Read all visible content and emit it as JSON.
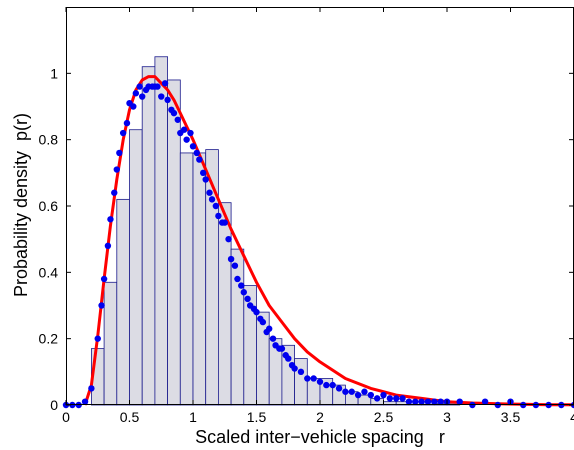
{
  "chart_data": {
    "type": "bar",
    "xlabel": "Scaled inter−vehicle spacing   r",
    "ylabel": "Probability density  p(r)",
    "xlim": [
      0,
      4
    ],
    "ylim": [
      0,
      1.2
    ],
    "xticks": [
      "0",
      "0.5",
      "1",
      "1.5",
      "2",
      "2.5",
      "3",
      "3.5",
      "4"
    ],
    "yticks": [
      "0",
      "0.2",
      "0.4",
      "0.6",
      "0.8",
      "1"
    ],
    "grid": false,
    "histogram": {
      "bin_width": 0.1,
      "bin_starts": [
        0.0,
        0.1,
        0.2,
        0.3,
        0.4,
        0.5,
        0.6,
        0.7,
        0.8,
        0.9,
        1.0,
        1.1,
        1.2,
        1.3,
        1.4,
        1.5,
        1.6,
        1.7,
        1.8,
        1.9,
        2.0,
        2.1,
        2.2,
        2.3,
        2.4,
        2.5,
        2.6,
        2.7,
        2.8,
        2.9,
        3.0,
        3.1,
        3.2,
        3.3,
        3.4,
        3.5,
        3.6,
        3.7,
        3.8,
        3.9
      ],
      "values": [
        0.0,
        0.0,
        0.17,
        0.37,
        0.62,
        0.83,
        1.02,
        1.05,
        0.98,
        0.76,
        0.76,
        0.77,
        0.61,
        0.47,
        0.36,
        0.28,
        0.2,
        0.18,
        0.14,
        0.08,
        0.08,
        0.06,
        0.04,
        0.03,
        0.02,
        0.01,
        0.01,
        0.01,
        0.01,
        0.005,
        0.005,
        0.0,
        0.0,
        0.0,
        0.0,
        0.0,
        0.0,
        0.0,
        0.0,
        0.0
      ],
      "fill": "#dcdce4",
      "stroke": "#1a1a8c"
    },
    "series": [
      {
        "type": "scatter",
        "color": "#0000ee",
        "x": [
          0.0,
          0.05,
          0.1,
          0.15,
          0.2,
          0.25,
          0.28,
          0.3,
          0.33,
          0.35,
          0.38,
          0.4,
          0.42,
          0.45,
          0.48,
          0.5,
          0.53,
          0.55,
          0.58,
          0.6,
          0.63,
          0.65,
          0.68,
          0.7,
          0.72,
          0.75,
          0.78,
          0.8,
          0.83,
          0.85,
          0.88,
          0.9,
          0.93,
          0.95,
          0.98,
          1.0,
          1.03,
          1.05,
          1.08,
          1.1,
          1.13,
          1.15,
          1.18,
          1.2,
          1.23,
          1.25,
          1.28,
          1.3,
          1.33,
          1.35,
          1.38,
          1.4,
          1.43,
          1.45,
          1.48,
          1.5,
          1.53,
          1.55,
          1.58,
          1.6,
          1.63,
          1.65,
          1.68,
          1.7,
          1.73,
          1.75,
          1.78,
          1.8,
          1.85,
          1.9,
          1.95,
          2.0,
          2.05,
          2.1,
          2.15,
          2.2,
          2.25,
          2.3,
          2.35,
          2.4,
          2.45,
          2.5,
          2.55,
          2.6,
          2.65,
          2.7,
          2.75,
          2.8,
          2.85,
          2.9,
          2.95,
          3.0,
          3.1,
          3.2,
          3.3,
          3.4,
          3.5,
          3.6,
          3.7,
          3.8,
          3.9,
          4.0
        ],
        "y": [
          0.0,
          0.0,
          0.0,
          0.01,
          0.05,
          0.2,
          0.3,
          0.38,
          0.48,
          0.56,
          0.64,
          0.71,
          0.76,
          0.82,
          0.85,
          0.91,
          0.9,
          0.94,
          0.96,
          0.93,
          0.95,
          0.96,
          0.96,
          0.96,
          0.96,
          0.93,
          0.97,
          0.92,
          0.89,
          0.88,
          0.86,
          0.82,
          0.83,
          0.8,
          0.82,
          0.78,
          0.76,
          0.74,
          0.7,
          0.68,
          0.64,
          0.62,
          0.6,
          0.57,
          0.55,
          0.55,
          0.5,
          0.44,
          0.42,
          0.38,
          0.36,
          0.34,
          0.32,
          0.3,
          0.29,
          0.28,
          0.26,
          0.25,
          0.22,
          0.23,
          0.2,
          0.18,
          0.17,
          0.17,
          0.15,
          0.14,
          0.12,
          0.11,
          0.1,
          0.08,
          0.08,
          0.07,
          0.06,
          0.06,
          0.05,
          0.04,
          0.04,
          0.03,
          0.04,
          0.03,
          0.02,
          0.03,
          0.02,
          0.02,
          0.02,
          0.01,
          0.01,
          0.01,
          0.01,
          0.01,
          0.01,
          0.01,
          0.01,
          0.0,
          0.01,
          0.0,
          0.01,
          0.0,
          0.0,
          0.0,
          0.0,
          0.0
        ]
      },
      {
        "type": "line",
        "color": "#ff0000",
        "x": [
          0.15,
          0.2,
          0.25,
          0.3,
          0.35,
          0.4,
          0.45,
          0.5,
          0.55,
          0.6,
          0.65,
          0.7,
          0.75,
          0.8,
          0.85,
          0.9,
          0.95,
          1.0,
          1.1,
          1.2,
          1.3,
          1.4,
          1.5,
          1.6,
          1.7,
          1.8,
          1.9,
          2.0,
          2.2,
          2.4,
          2.6,
          2.8,
          3.0,
          3.2,
          3.4,
          3.6,
          3.8,
          4.0
        ],
        "y": [
          0.0,
          0.06,
          0.21,
          0.38,
          0.54,
          0.68,
          0.8,
          0.89,
          0.95,
          0.98,
          0.99,
          0.99,
          0.97,
          0.95,
          0.92,
          0.88,
          0.84,
          0.8,
          0.71,
          0.62,
          0.53,
          0.45,
          0.37,
          0.3,
          0.25,
          0.2,
          0.16,
          0.13,
          0.08,
          0.05,
          0.03,
          0.02,
          0.01,
          0.006,
          0.004,
          0.002,
          0.001,
          0.001
        ]
      }
    ]
  }
}
